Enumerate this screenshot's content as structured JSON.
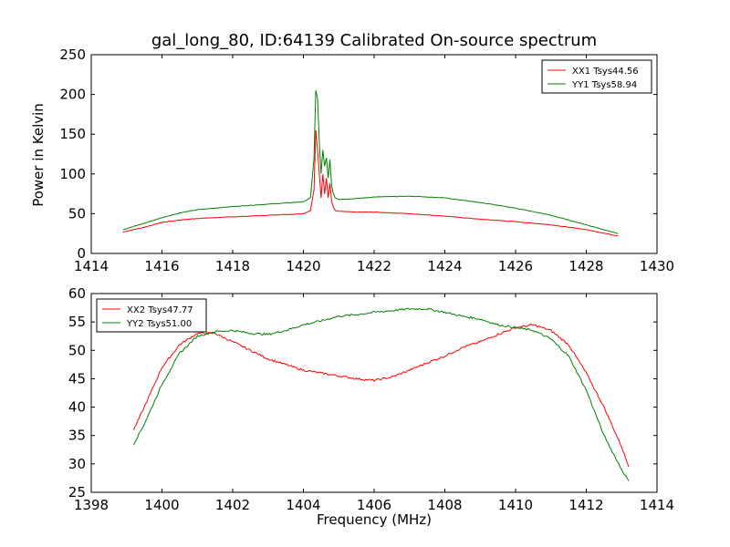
{
  "figure": {
    "title": "gal_long_80, ID:64139 Calibrated On-source spectrum",
    "ylabel": "Power in Kelvin",
    "xlabel": "Frequency (MHz)"
  },
  "chart_data": [
    {
      "type": "line",
      "title": "gal_long_80, ID:64139 Calibrated On-source spectrum",
      "ylabel": "Power in Kelvin",
      "xlabel": "",
      "xlim": [
        1414,
        1430
      ],
      "ylim": [
        0,
        250
      ],
      "xticks": [
        "1414",
        "1416",
        "1418",
        "1420",
        "1422",
        "1424",
        "1426",
        "1428",
        "1430"
      ],
      "yticks": [
        "0",
        "50",
        "100",
        "150",
        "200",
        "250"
      ],
      "legend": "top-right",
      "grid": false,
      "series": [
        {
          "name": "XX1 Tsys44.56",
          "color": "#ff0000",
          "x": [
            1414.9,
            1415.5,
            1416.0,
            1416.5,
            1417.0,
            1418.0,
            1419.0,
            1420.0,
            1420.2,
            1420.3,
            1420.35,
            1420.4,
            1420.45,
            1420.5,
            1420.55,
            1420.6,
            1420.65,
            1420.7,
            1420.75,
            1420.8,
            1420.85,
            1420.9,
            1421.0,
            1421.5,
            1422.0,
            1423.0,
            1424.0,
            1425.0,
            1426.0,
            1427.0,
            1428.0,
            1428.9
          ],
          "y": [
            27,
            33,
            39,
            42,
            44,
            46,
            48,
            50,
            54,
            80,
            155,
            130,
            100,
            70,
            100,
            75,
            95,
            70,
            88,
            65,
            58,
            54,
            53,
            52,
            52,
            50,
            47,
            43,
            40,
            36,
            30,
            22
          ]
        },
        {
          "name": "YY1 Tsys58.94",
          "color": "#008000",
          "x": [
            1414.9,
            1415.5,
            1416.0,
            1416.5,
            1417.0,
            1418.0,
            1419.0,
            1420.0,
            1420.2,
            1420.3,
            1420.35,
            1420.4,
            1420.45,
            1420.5,
            1420.55,
            1420.6,
            1420.65,
            1420.7,
            1420.75,
            1420.8,
            1420.85,
            1420.9,
            1421.0,
            1421.5,
            1422.0,
            1423.0,
            1424.0,
            1425.0,
            1426.0,
            1427.0,
            1428.0,
            1428.9
          ],
          "y": [
            30,
            38,
            45,
            51,
            55,
            59,
            62,
            65,
            70,
            120,
            205,
            195,
            140,
            100,
            130,
            110,
            120,
            95,
            118,
            85,
            75,
            70,
            68,
            69,
            71,
            72,
            70,
            64,
            57,
            48,
            36,
            25
          ]
        }
      ]
    },
    {
      "type": "line",
      "title": "",
      "xlabel": "Frequency (MHz)",
      "ylabel": "",
      "xlim": [
        1398,
        1414
      ],
      "ylim": [
        25,
        60
      ],
      "xticks": [
        "1398",
        "1400",
        "1402",
        "1404",
        "1406",
        "1408",
        "1410",
        "1412",
        "1414"
      ],
      "yticks": [
        "25",
        "30",
        "35",
        "40",
        "45",
        "50",
        "55",
        "60"
      ],
      "legend": "top-left",
      "grid": false,
      "series": [
        {
          "name": "XX2 Tsys47.77",
          "color": "#ff0000",
          "x": [
            1399.2,
            1399.5,
            1400.0,
            1400.5,
            1401.0,
            1401.5,
            1402.0,
            1402.5,
            1403.0,
            1403.5,
            1404.0,
            1404.5,
            1405.0,
            1405.5,
            1406.0,
            1406.5,
            1407.0,
            1407.5,
            1408.0,
            1408.5,
            1409.0,
            1409.5,
            1410.0,
            1410.5,
            1411.0,
            1411.5,
            1412.0,
            1412.5,
            1413.0,
            1413.2
          ],
          "y": [
            36,
            40,
            47,
            51,
            53,
            53,
            51.5,
            50,
            48.5,
            47.5,
            46.5,
            46,
            45.5,
            45,
            44.7,
            45.3,
            46.5,
            47.8,
            49,
            50.5,
            51.5,
            52.8,
            54,
            54.5,
            53.5,
            51,
            46,
            40,
            33,
            29.5
          ]
        },
        {
          "name": "YY2 Tsys51.00",
          "color": "#008000",
          "x": [
            1399.2,
            1399.5,
            1400.0,
            1400.5,
            1401.0,
            1401.5,
            1402.0,
            1402.5,
            1403.0,
            1403.5,
            1404.0,
            1404.5,
            1405.0,
            1405.5,
            1406.0,
            1406.5,
            1407.0,
            1407.5,
            1408.0,
            1408.5,
            1409.0,
            1409.5,
            1410.0,
            1410.5,
            1411.0,
            1411.5,
            1412.0,
            1412.5,
            1413.0,
            1413.2
          ],
          "y": [
            33.5,
            37,
            44,
            49.5,
            52.5,
            53.3,
            53.5,
            53,
            52.8,
            53.5,
            54.5,
            55.2,
            56,
            56.3,
            56.7,
            57,
            57.3,
            57.3,
            56.7,
            56,
            55.5,
            54.5,
            54,
            53.5,
            52,
            49,
            43,
            35,
            29,
            27
          ]
        }
      ]
    }
  ]
}
